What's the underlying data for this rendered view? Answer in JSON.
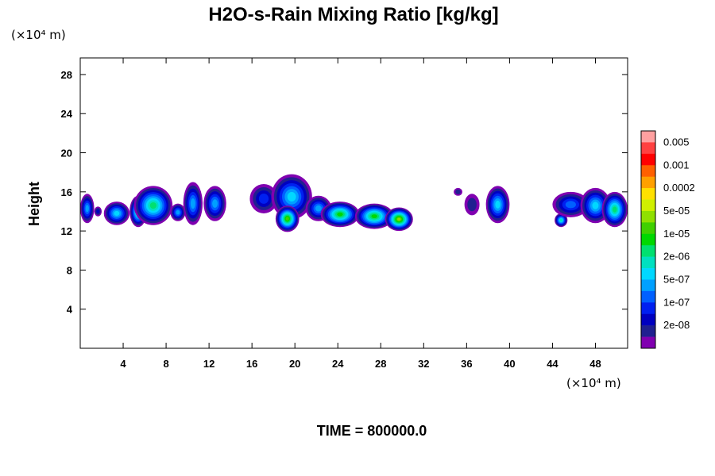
{
  "chart_data": {
    "type": "heatmap",
    "title": "H2O-s-Rain Mixing Ratio [kg/kg]",
    "ylabel": "Height",
    "x_unit_label": "(×10⁴ m)",
    "y_unit_label": "(×10⁴ m)",
    "time_label": "TIME = 800000.0",
    "xlim": [
      0,
      51
    ],
    "ylim": [
      0,
      29.7
    ],
    "x_ticks": [
      4,
      8,
      12,
      16,
      20,
      24,
      28,
      32,
      36,
      40,
      44,
      48
    ],
    "y_ticks": [
      4,
      8,
      12,
      16,
      20,
      24,
      28
    ],
    "colorbar": {
      "labels": [
        "0.005",
        "0.001",
        "0.0002",
        "5e-05",
        "1e-05",
        "2e-06",
        "5e-07",
        "1e-07",
        "2e-08"
      ],
      "colors": [
        "#ffa0a0",
        "#ff4040",
        "#ff0000",
        "#ff6000",
        "#ffa000",
        "#ffe000",
        "#d0f000",
        "#90e000",
        "#40d000",
        "#00d800",
        "#00e070",
        "#00e0c0",
        "#00d8ff",
        "#00a0ff",
        "#0060ff",
        "#0020f0",
        "#0000c0",
        "#202090",
        "#8000b0"
      ]
    },
    "clouds": [
      {
        "x": [
          0,
          1.3
        ],
        "y": [
          12.8,
          15.8
        ],
        "max_level": 5
      },
      {
        "x": [
          1.3,
          2.0
        ],
        "y": [
          13.5,
          14.5
        ],
        "max_level": 2
      },
      {
        "x": [
          2.2,
          4.6
        ],
        "y": [
          12.6,
          15.0
        ],
        "max_level": 6
      },
      {
        "x": [
          4.6,
          6.2
        ],
        "y": [
          12.4,
          15.6
        ],
        "max_level": 8
      },
      {
        "x": [
          5.0,
          8.6
        ],
        "y": [
          12.6,
          16.6
        ],
        "max_level": 8
      },
      {
        "x": [
          8.4,
          9.8
        ],
        "y": [
          13.0,
          14.8
        ],
        "max_level": 5
      },
      {
        "x": [
          9.6,
          11.4
        ],
        "y": [
          12.6,
          17.0
        ],
        "max_level": 5
      },
      {
        "x": [
          11.5,
          13.6
        ],
        "y": [
          13.0,
          16.6
        ],
        "max_level": 5
      },
      {
        "x": [
          15.8,
          18.4
        ],
        "y": [
          13.8,
          16.8
        ],
        "max_level": 3
      },
      {
        "x": [
          17.8,
          21.6
        ],
        "y": [
          13.2,
          17.8
        ],
        "max_level": 6
      },
      {
        "x": [
          18.2,
          20.4
        ],
        "y": [
          11.9,
          14.6
        ],
        "max_level": 10
      },
      {
        "x": [
          21.0,
          23.4
        ],
        "y": [
          13.0,
          15.6
        ],
        "max_level": 5
      },
      {
        "x": [
          22.4,
          26.0
        ],
        "y": [
          12.4,
          15.0
        ],
        "max_level": 9
      },
      {
        "x": [
          25.6,
          29.2
        ],
        "y": [
          12.2,
          14.8
        ],
        "max_level": 9
      },
      {
        "x": [
          28.4,
          31.0
        ],
        "y": [
          12.0,
          14.4
        ],
        "max_level": 11
      },
      {
        "x": [
          34.8,
          35.6
        ],
        "y": [
          15.6,
          16.4
        ],
        "max_level": 1
      },
      {
        "x": [
          35.8,
          37.2
        ],
        "y": [
          13.6,
          15.8
        ],
        "max_level": 1
      },
      {
        "x": [
          37.8,
          40.0
        ],
        "y": [
          12.8,
          16.6
        ],
        "max_level": 6
      },
      {
        "x": [
          44.2,
          45.4
        ],
        "y": [
          12.4,
          13.8
        ],
        "max_level": 7
      },
      {
        "x": [
          44.0,
          47.4
        ],
        "y": [
          13.4,
          16.0
        ],
        "max_level": 4
      },
      {
        "x": [
          46.6,
          49.4
        ],
        "y": [
          12.8,
          16.4
        ],
        "max_level": 6
      },
      {
        "x": [
          48.6,
          51.0
        ],
        "y": [
          12.4,
          16.0
        ],
        "max_level": 8
      }
    ]
  }
}
